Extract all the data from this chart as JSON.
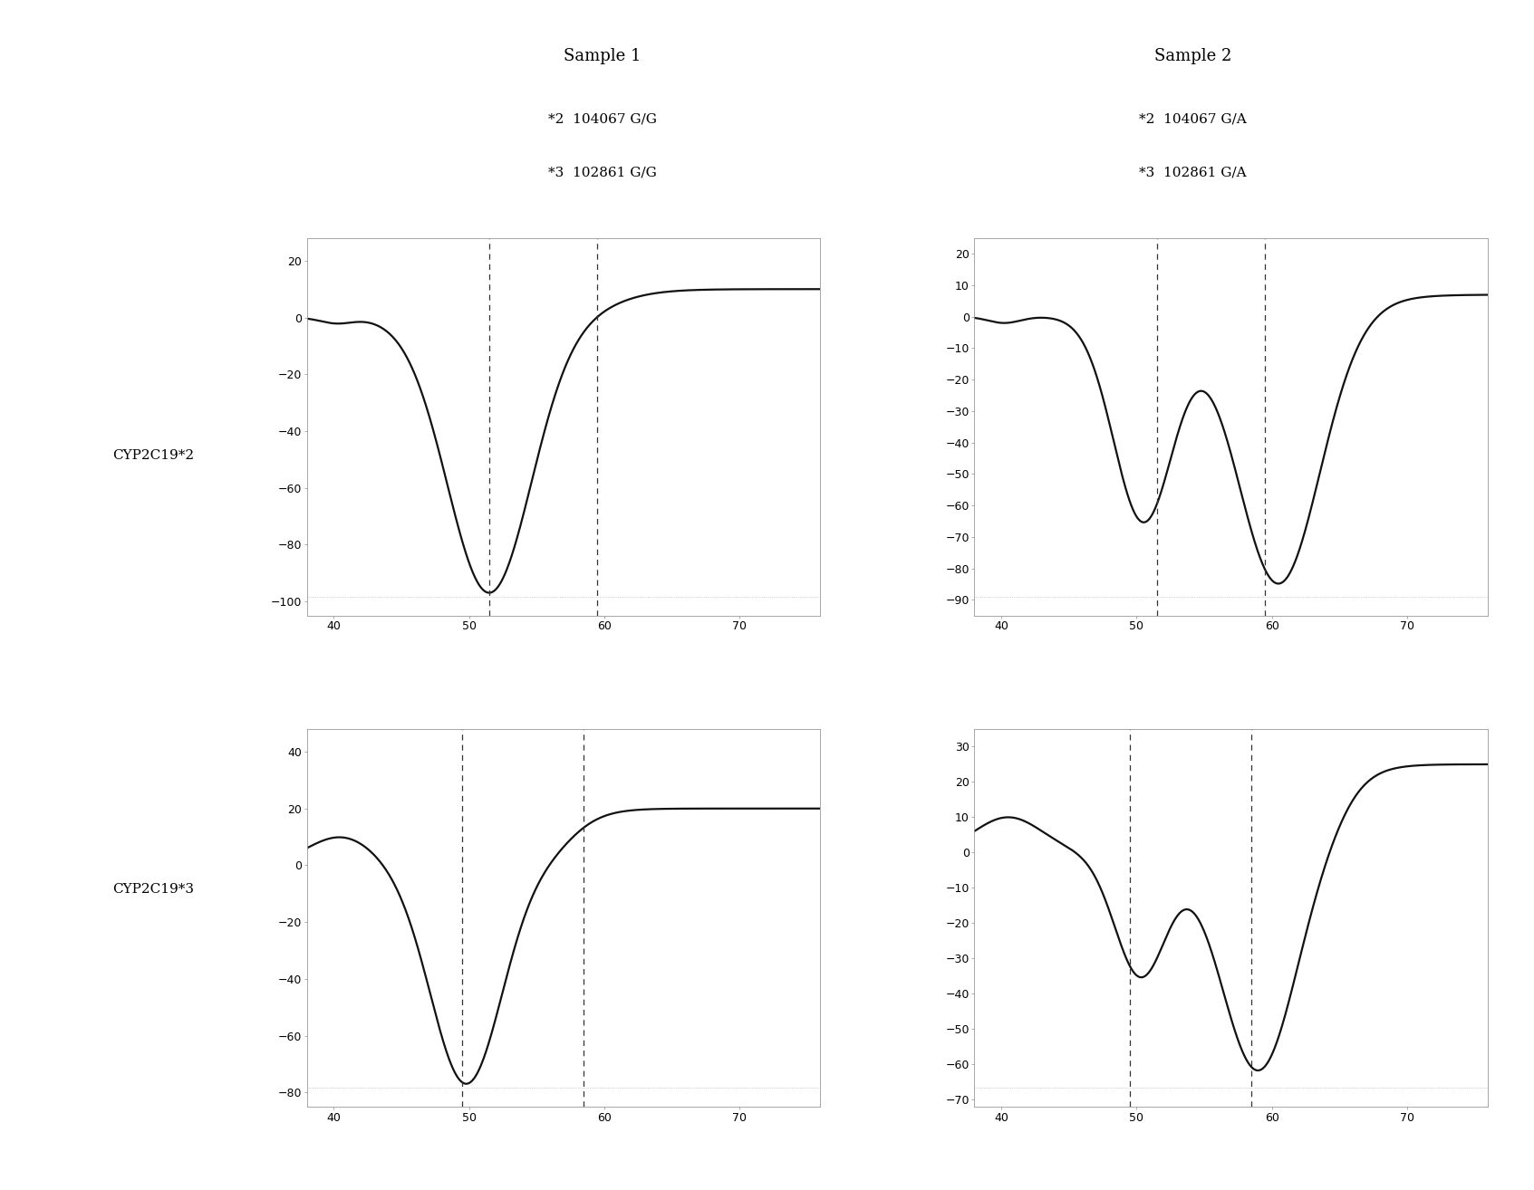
{
  "title1": "Sample 1",
  "title2": "Sample 2",
  "subtitle1_line1": "*2  104067 G/G",
  "subtitle1_line2": "*3  102861 G/G",
  "subtitle2_line1": "*2  104067 G/A",
  "subtitle2_line2": "*3  102861 G/A",
  "row_labels": [
    "CYP2C19*2",
    "CYP2C19*3"
  ],
  "xlim": [
    38,
    76
  ],
  "xticks": [
    40,
    50,
    60,
    70
  ],
  "dashed_lines": {
    "p11": [
      51.5,
      59.5
    ],
    "p12": [
      51.5,
      59.5
    ],
    "p21": [
      49.5,
      58.5
    ],
    "p22": [
      49.5,
      58.5
    ]
  },
  "ylims": {
    "p11": [
      -105,
      28
    ],
    "p12": [
      -95,
      25
    ],
    "p21": [
      -85,
      48
    ],
    "p22": [
      -72,
      35
    ]
  },
  "yticks": {
    "p11": [
      -100,
      -80,
      -60,
      -40,
      -20,
      0,
      20
    ],
    "p12": [
      -90,
      -80,
      -70,
      -60,
      -50,
      -40,
      -30,
      -20,
      -10,
      0,
      10,
      20
    ],
    "p21": [
      -80,
      -60,
      -40,
      -20,
      0,
      20,
      40
    ],
    "p22": [
      -70,
      -60,
      -50,
      -40,
      -30,
      -20,
      -10,
      0,
      10,
      20,
      30
    ]
  },
  "bg": "#ffffff",
  "curve_color": "#111111",
  "dash_color": "#333333",
  "spine_color": "#999999",
  "figsize": [
    16.93,
    13.14
  ],
  "dpi": 100,
  "title_fontsize": 13,
  "label_fontsize": 11,
  "tick_fontsize": 9,
  "row_label_fontsize": 11
}
